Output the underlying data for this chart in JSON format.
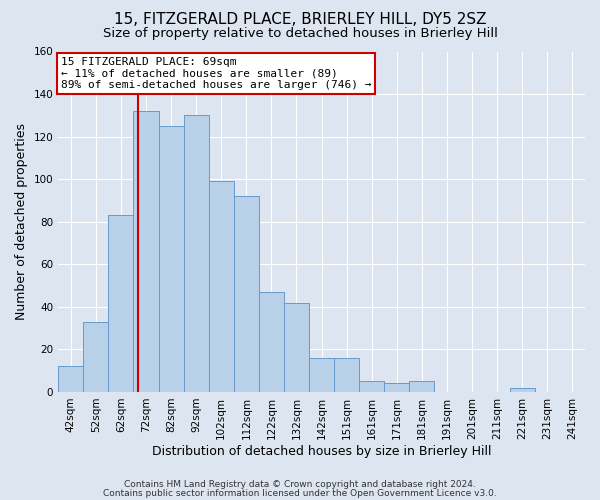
{
  "title": "15, FITZGERALD PLACE, BRIERLEY HILL, DY5 2SZ",
  "subtitle": "Size of property relative to detached houses in Brierley Hill",
  "xlabel": "Distribution of detached houses by size in Brierley Hill",
  "ylabel": "Number of detached properties",
  "bar_labels": [
    "42sqm",
    "52sqm",
    "62sqm",
    "72sqm",
    "82sqm",
    "92sqm",
    "102sqm",
    "112sqm",
    "122sqm",
    "132sqm",
    "142sqm",
    "151sqm",
    "161sqm",
    "171sqm",
    "181sqm",
    "191sqm",
    "201sqm",
    "211sqm",
    "221sqm",
    "231sqm",
    "241sqm"
  ],
  "bar_values": [
    12,
    33,
    83,
    132,
    125,
    130,
    99,
    92,
    47,
    42,
    16,
    16,
    5,
    4,
    5,
    0,
    0,
    0,
    2,
    0,
    0
  ],
  "bar_color": "#b8d0e8",
  "bar_edge_color": "#6699cc",
  "background_color": "#dde6f0",
  "ylim": [
    0,
    160
  ],
  "yticks": [
    0,
    20,
    40,
    60,
    80,
    100,
    120,
    140,
    160
  ],
  "vline_x_index": 2.7,
  "vline_color": "#cc0000",
  "annotation_line1": "15 FITZGERALD PLACE: 69sqm",
  "annotation_line2": "← 11% of detached houses are smaller (89)",
  "annotation_line3": "89% of semi-detached houses are larger (746) →",
  "annotation_box_color": "#ffffff",
  "annotation_box_edge": "#cc0000",
  "footer_line1": "Contains HM Land Registry data © Crown copyright and database right 2024.",
  "footer_line2": "Contains public sector information licensed under the Open Government Licence v3.0.",
  "title_fontsize": 11,
  "subtitle_fontsize": 9.5,
  "axis_label_fontsize": 9,
  "tick_fontsize": 7.5,
  "annotation_fontsize": 8,
  "footer_fontsize": 6.5
}
